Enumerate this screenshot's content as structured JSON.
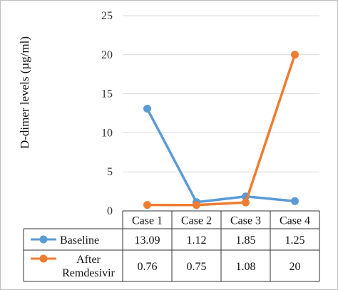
{
  "chart_data": {
    "type": "line",
    "categories": [
      "Case 1",
      "Case 2",
      "Case 3",
      "Case 4"
    ],
    "series": [
      {
        "name": "Baseline",
        "values": [
          13.09,
          1.12,
          1.85,
          1.25
        ],
        "value_labels": [
          "13.09",
          "1.12",
          "1.85",
          "1.25"
        ],
        "color": "#5b9bd5"
      },
      {
        "name": "After Remdesivir",
        "name_lines": [
          "After",
          "Remdesivir"
        ],
        "values": [
          0.76,
          0.75,
          1.08,
          20
        ],
        "value_labels": [
          "0.76",
          "0.75",
          "1.08",
          "20"
        ],
        "color": "#ed7d31"
      }
    ],
    "ylabel": "D-dimer levels (µg/ml)",
    "ylim": [
      0,
      25
    ],
    "yticks": [
      0,
      5,
      10,
      15,
      20,
      25
    ],
    "grid": true,
    "legend": "data table below plot"
  }
}
